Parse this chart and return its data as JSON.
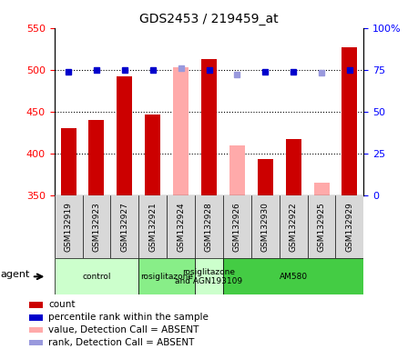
{
  "title": "GDS2453 / 219459_at",
  "samples": [
    "GSM132919",
    "GSM132923",
    "GSM132927",
    "GSM132921",
    "GSM132924",
    "GSM132928",
    "GSM132926",
    "GSM132930",
    "GSM132922",
    "GSM132925",
    "GSM132929"
  ],
  "bar_values": [
    430,
    440,
    492,
    447,
    503,
    513,
    410,
    393,
    417,
    365,
    527
  ],
  "bar_colors": [
    "#cc0000",
    "#cc0000",
    "#cc0000",
    "#cc0000",
    "#ffaaaa",
    "#cc0000",
    "#ffaaaa",
    "#cc0000",
    "#cc0000",
    "#ffaaaa",
    "#cc0000"
  ],
  "percentile_values": [
    74,
    75,
    75,
    75,
    76,
    75,
    72,
    74,
    74,
    73,
    75
  ],
  "percentile_colors": [
    "#0000cc",
    "#0000cc",
    "#0000cc",
    "#0000cc",
    "#9999dd",
    "#0000cc",
    "#9999dd",
    "#0000cc",
    "#0000cc",
    "#9999dd",
    "#0000cc"
  ],
  "ylim_left": [
    350,
    550
  ],
  "ylim_right": [
    0,
    100
  ],
  "yticks_left": [
    350,
    400,
    450,
    500,
    550
  ],
  "yticks_right": [
    0,
    25,
    50,
    75,
    100
  ],
  "ytick_right_labels": [
    "0",
    "25",
    "50",
    "75",
    "100%"
  ],
  "groups": [
    {
      "label": "control",
      "start": 0,
      "end": 3,
      "color": "#ccffcc"
    },
    {
      "label": "rosiglitazone",
      "start": 3,
      "end": 5,
      "color": "#88ee88"
    },
    {
      "label": "rosiglitazone\nand AGN193109",
      "start": 5,
      "end": 6,
      "color": "#ccffcc"
    },
    {
      "label": "AM580",
      "start": 6,
      "end": 11,
      "color": "#44cc44"
    }
  ],
  "legend_items": [
    {
      "label": "count",
      "color": "#cc0000"
    },
    {
      "label": "percentile rank within the sample",
      "color": "#0000cc"
    },
    {
      "label": "value, Detection Call = ABSENT",
      "color": "#ffaaaa"
    },
    {
      "label": "rank, Detection Call = ABSENT",
      "color": "#9999dd"
    }
  ],
  "agent_label": "agent",
  "bar_width": 0.55
}
